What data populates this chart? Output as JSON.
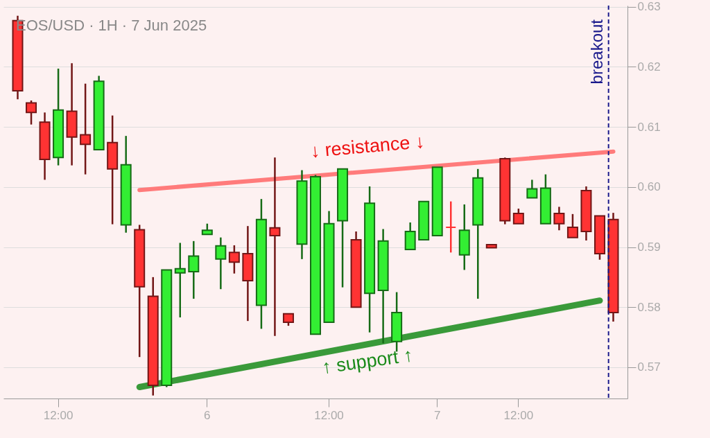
{
  "chart_data": {
    "type": "candlestick",
    "title": "EOS/USD · 1H · 7 Jun 2025",
    "categories": [
      null,
      null,
      null,
      "12:00",
      null,
      null,
      null,
      null,
      null,
      null,
      null,
      null,
      null,
      null,
      "6",
      null,
      null,
      null,
      null,
      null,
      null,
      null,
      null,
      "12:00",
      null,
      null,
      null,
      null,
      null,
      null,
      null,
      "7",
      null,
      null,
      null,
      null,
      null,
      "12:00",
      null,
      null,
      null,
      null,
      null,
      null,
      null
    ],
    "ohlc": [
      [
        0.6277,
        0.6285,
        0.6146,
        0.616
      ],
      [
        0.614,
        0.6144,
        0.6104,
        0.6124
      ],
      [
        0.6108,
        0.6124,
        0.6012,
        0.6046
      ],
      [
        0.6049,
        0.6197,
        0.6036,
        0.6128
      ],
      [
        0.6126,
        0.6206,
        0.6036,
        0.6083
      ],
      [
        0.6087,
        0.6172,
        0.6021,
        0.6071
      ],
      [
        0.6062,
        0.6185,
        0.6062,
        0.6176
      ],
      [
        0.6074,
        0.6119,
        0.5938,
        0.603
      ],
      [
        0.5937,
        0.6085,
        0.5924,
        0.6037
      ],
      [
        0.5929,
        0.5937,
        0.5717,
        0.5834
      ],
      [
        0.5818,
        0.585,
        0.5653,
        0.567
      ],
      [
        0.567,
        0.5862,
        0.5667,
        0.5862
      ],
      [
        0.5857,
        0.5907,
        0.5783,
        0.5864
      ],
      [
        0.5859,
        0.591,
        0.5814,
        0.5885
      ],
      [
        0.5921,
        0.5939,
        0.5921,
        0.5928
      ],
      [
        0.588,
        0.5916,
        0.583,
        0.5902
      ],
      [
        0.5891,
        0.5903,
        0.5856,
        0.5875
      ],
      [
        0.5889,
        0.5935,
        0.5777,
        0.5844
      ],
      [
        0.5803,
        0.598,
        0.5764,
        0.5946
      ],
      [
        0.5932,
        0.6049,
        0.5752,
        0.5919
      ],
      [
        0.5789,
        0.5789,
        0.5769,
        0.5775
      ],
      [
        0.5905,
        0.6028,
        0.588,
        0.601
      ],
      [
        0.5755,
        0.602,
        0.5755,
        0.6017
      ],
      [
        0.5775,
        0.596,
        0.5775,
        0.5939
      ],
      [
        0.5944,
        0.603,
        0.5833,
        0.603
      ],
      [
        0.5912,
        0.5926,
        0.58,
        0.58
      ],
      [
        0.5823,
        0.6001,
        0.5758,
        0.5973
      ],
      [
        0.5828,
        0.593,
        0.574,
        0.591
      ],
      [
        0.5743,
        0.5825,
        0.5726,
        0.5791
      ],
      [
        0.5896,
        0.5941,
        0.5896,
        0.5926
      ],
      [
        0.5912,
        0.5976,
        0.5911,
        0.5976
      ],
      [
        0.5919,
        0.6033,
        0.5919,
        0.6033
      ],
      [
        0.5933,
        0.5976,
        0.5891,
        0.5933
      ],
      [
        0.5887,
        0.5971,
        0.5862,
        0.5928
      ],
      [
        0.5937,
        0.603,
        0.5814,
        0.6015
      ],
      [
        0.5904,
        0.5904,
        0.5899,
        0.5899
      ],
      [
        0.6047,
        0.6049,
        0.5938,
        0.5944
      ],
      [
        0.5956,
        0.5964,
        0.5939,
        0.5939
      ],
      [
        0.5982,
        0.6012,
        0.5982,
        0.5997
      ],
      [
        0.5939,
        0.6021,
        0.5939,
        0.5998
      ],
      [
        0.5956,
        0.5967,
        0.5928,
        0.5939
      ],
      [
        0.5933,
        0.5955,
        0.5916,
        0.5916
      ],
      [
        0.5994,
        0.6001,
        0.5911,
        0.5926
      ],
      [
        0.5952,
        0.5952,
        0.5879,
        0.5889
      ],
      [
        0.5946,
        0.5957,
        0.5776,
        0.5791
      ]
    ],
    "colors": [
      "#ff3333",
      "#ff3333",
      "#ff3333",
      "#33ee33",
      "#ff3333",
      "#ff3333",
      "#33ee33",
      "#ff3333",
      "#33ee33",
      "#ff3333",
      "#ff3333",
      "#33ee33",
      "#33ee33",
      "#33ee33",
      "#33ee33",
      "#33ee33",
      "#ff3333",
      "#ff3333",
      "#33ee33",
      "#ff3333",
      "#ff3333",
      "#33ee33",
      "#33ee33",
      "#33ee33",
      "#33ee33",
      "#ff3333",
      "#33ee33",
      "#33ee33",
      "#33ee33",
      "#33ee33",
      "#33ee33",
      "#33ee33",
      "#ff3333",
      "#33ee33",
      "#33ee33",
      "#ff3333",
      "#ff3333",
      "#ff3333",
      "#33ee33",
      "#33ee33",
      "#ff3333",
      "#ff3333",
      "#ff3333",
      "#ff3333",
      "#ff3333"
    ],
    "series": [
      {
        "type": "line",
        "values": [
          null,
          null,
          null,
          null,
          null,
          null,
          null,
          null,
          null,
          0.5995,
          null,
          null,
          null,
          null,
          null,
          null,
          null,
          null,
          null,
          null,
          null,
          null,
          null,
          null,
          null,
          null,
          null,
          null,
          null,
          null,
          null,
          null,
          null,
          null,
          null,
          null,
          null,
          null,
          null,
          null,
          null,
          null,
          null,
          null,
          0.6059
        ],
        "color": "#ff7b7b"
      },
      {
        "type": "line",
        "values": [
          null,
          null,
          null,
          null,
          null,
          null,
          null,
          null,
          null,
          0.5667,
          null,
          null,
          null,
          null,
          null,
          null,
          null,
          null,
          null,
          null,
          null,
          null,
          null,
          null,
          null,
          null,
          null,
          null,
          null,
          null,
          null,
          null,
          null,
          null,
          null,
          null,
          null,
          null,
          null,
          null,
          null,
          null,
          null,
          0.5811,
          null
        ],
        "color": "#3a9a3a"
      }
    ],
    "ylim": [
      0.5648,
      0.6302
    ],
    "yticks": [
      {
        "value": 0.57,
        "label": "0.57"
      },
      {
        "value": 0.58,
        "label": "0.58"
      },
      {
        "value": 0.59,
        "label": "0.59"
      },
      {
        "value": 0.6,
        "label": "0.60"
      },
      {
        "value": 0.61,
        "label": "0.61"
      },
      {
        "value": 0.62,
        "label": "0.62"
      },
      {
        "value": 0.63,
        "label": "0.63"
      }
    ],
    "grid": "y",
    "annotations": [
      "↓ resistance ↓",
      "↑ support ↑",
      "breakout"
    ]
  }
}
